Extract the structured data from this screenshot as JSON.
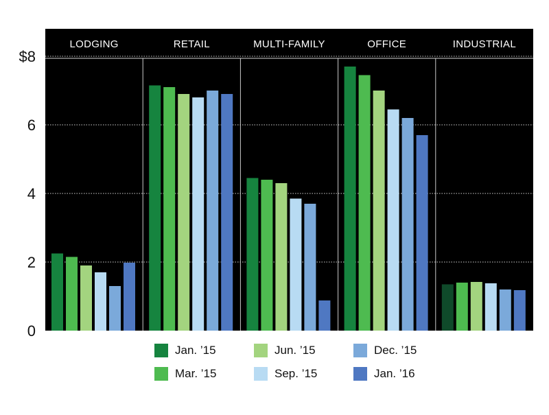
{
  "chart_data": {
    "type": "bar",
    "title": "",
    "xlabel": "",
    "ylabel": "",
    "ylim": [
      0,
      8.8
    ],
    "yticks": [
      {
        "value": 0,
        "label": "0"
      },
      {
        "value": 2,
        "label": "2"
      },
      {
        "value": 4,
        "label": "4"
      },
      {
        "value": 6,
        "label": "6"
      },
      {
        "value": 8,
        "label": "$8"
      }
    ],
    "grid": true,
    "legend_position": "bottom",
    "categories": [
      "LODGING",
      "RETAIL",
      "MULTI-FAMILY",
      "OFFICE",
      "INDUSTRIAL"
    ],
    "series": [
      {
        "name": "Jan. ’15",
        "color": "#16843f",
        "values": [
          2.25,
          7.15,
          4.45,
          7.7,
          1.35
        ]
      },
      {
        "name": "Mar. ’15",
        "color": "#4ebb50",
        "values": [
          2.15,
          7.1,
          4.4,
          7.45,
          1.4
        ]
      },
      {
        "name": "Jun. ’15",
        "color": "#a3d47f",
        "values": [
          1.9,
          6.9,
          4.3,
          7.0,
          1.42
        ]
      },
      {
        "name": "Sep. ’15",
        "color": "#b8dbf3",
        "values": [
          1.7,
          6.8,
          3.85,
          6.45,
          1.38
        ]
      },
      {
        "name": "Dec. ’15",
        "color": "#7ba9da",
        "values": [
          1.3,
          7.0,
          3.7,
          6.2,
          1.2
        ]
      },
      {
        "name": "Jan. ’16",
        "color": "#4f78c2",
        "values": [
          1.98,
          6.9,
          0.88,
          5.7,
          1.18
        ]
      }
    ],
    "legend_order": [
      0,
      2,
      4,
      1,
      3,
      5
    ],
    "first_bar_override": {
      "category": "INDUSTRIAL",
      "color": "#0f4a2a"
    }
  }
}
